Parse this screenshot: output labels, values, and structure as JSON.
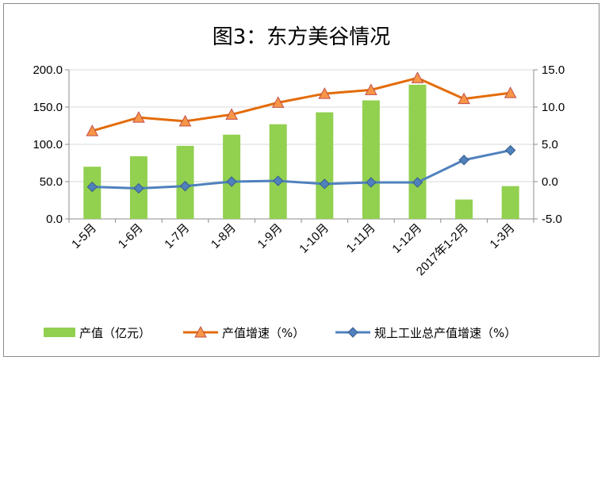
{
  "chart_data": {
    "type": "bar",
    "title": "图3：东方美谷情况",
    "categories": [
      "1-5月",
      "1-6月",
      "1-7月",
      "1-8月",
      "1-9月",
      "1-10月",
      "1-11月",
      "1-12月",
      "2017年1-2月",
      "1-3月"
    ],
    "series": [
      {
        "name": "产值（亿元）",
        "type": "bar",
        "axis": "left",
        "color": "#92d050",
        "values": [
          70,
          84,
          98,
          113,
          127,
          143,
          159,
          180,
          26,
          44
        ]
      },
      {
        "name": "产值增速（%）",
        "type": "line",
        "axis": "right",
        "color": "#e36c09",
        "marker": "triangle",
        "values": [
          6.8,
          8.6,
          8.1,
          9.0,
          10.6,
          11.8,
          12.3,
          13.9,
          11.1,
          11.9
        ]
      },
      {
        "name": "规上工业总产值增速（%）",
        "type": "line",
        "axis": "right",
        "color": "#4f81bd",
        "marker": "diamond",
        "values": [
          -0.7,
          -0.9,
          -0.6,
          0.0,
          0.1,
          -0.3,
          -0.1,
          -0.1,
          2.9,
          4.2
        ]
      }
    ],
    "left_axis": {
      "ylim": [
        0,
        200
      ],
      "ticks": [
        "0.0",
        "50.0",
        "100.0",
        "150.0",
        "200.0"
      ]
    },
    "right_axis": {
      "ylim": [
        -5,
        15
      ],
      "ticks": [
        "-5.0",
        "0.0",
        "5.0",
        "10.0",
        "15.0"
      ]
    },
    "grid": true,
    "legend_position": "bottom"
  }
}
